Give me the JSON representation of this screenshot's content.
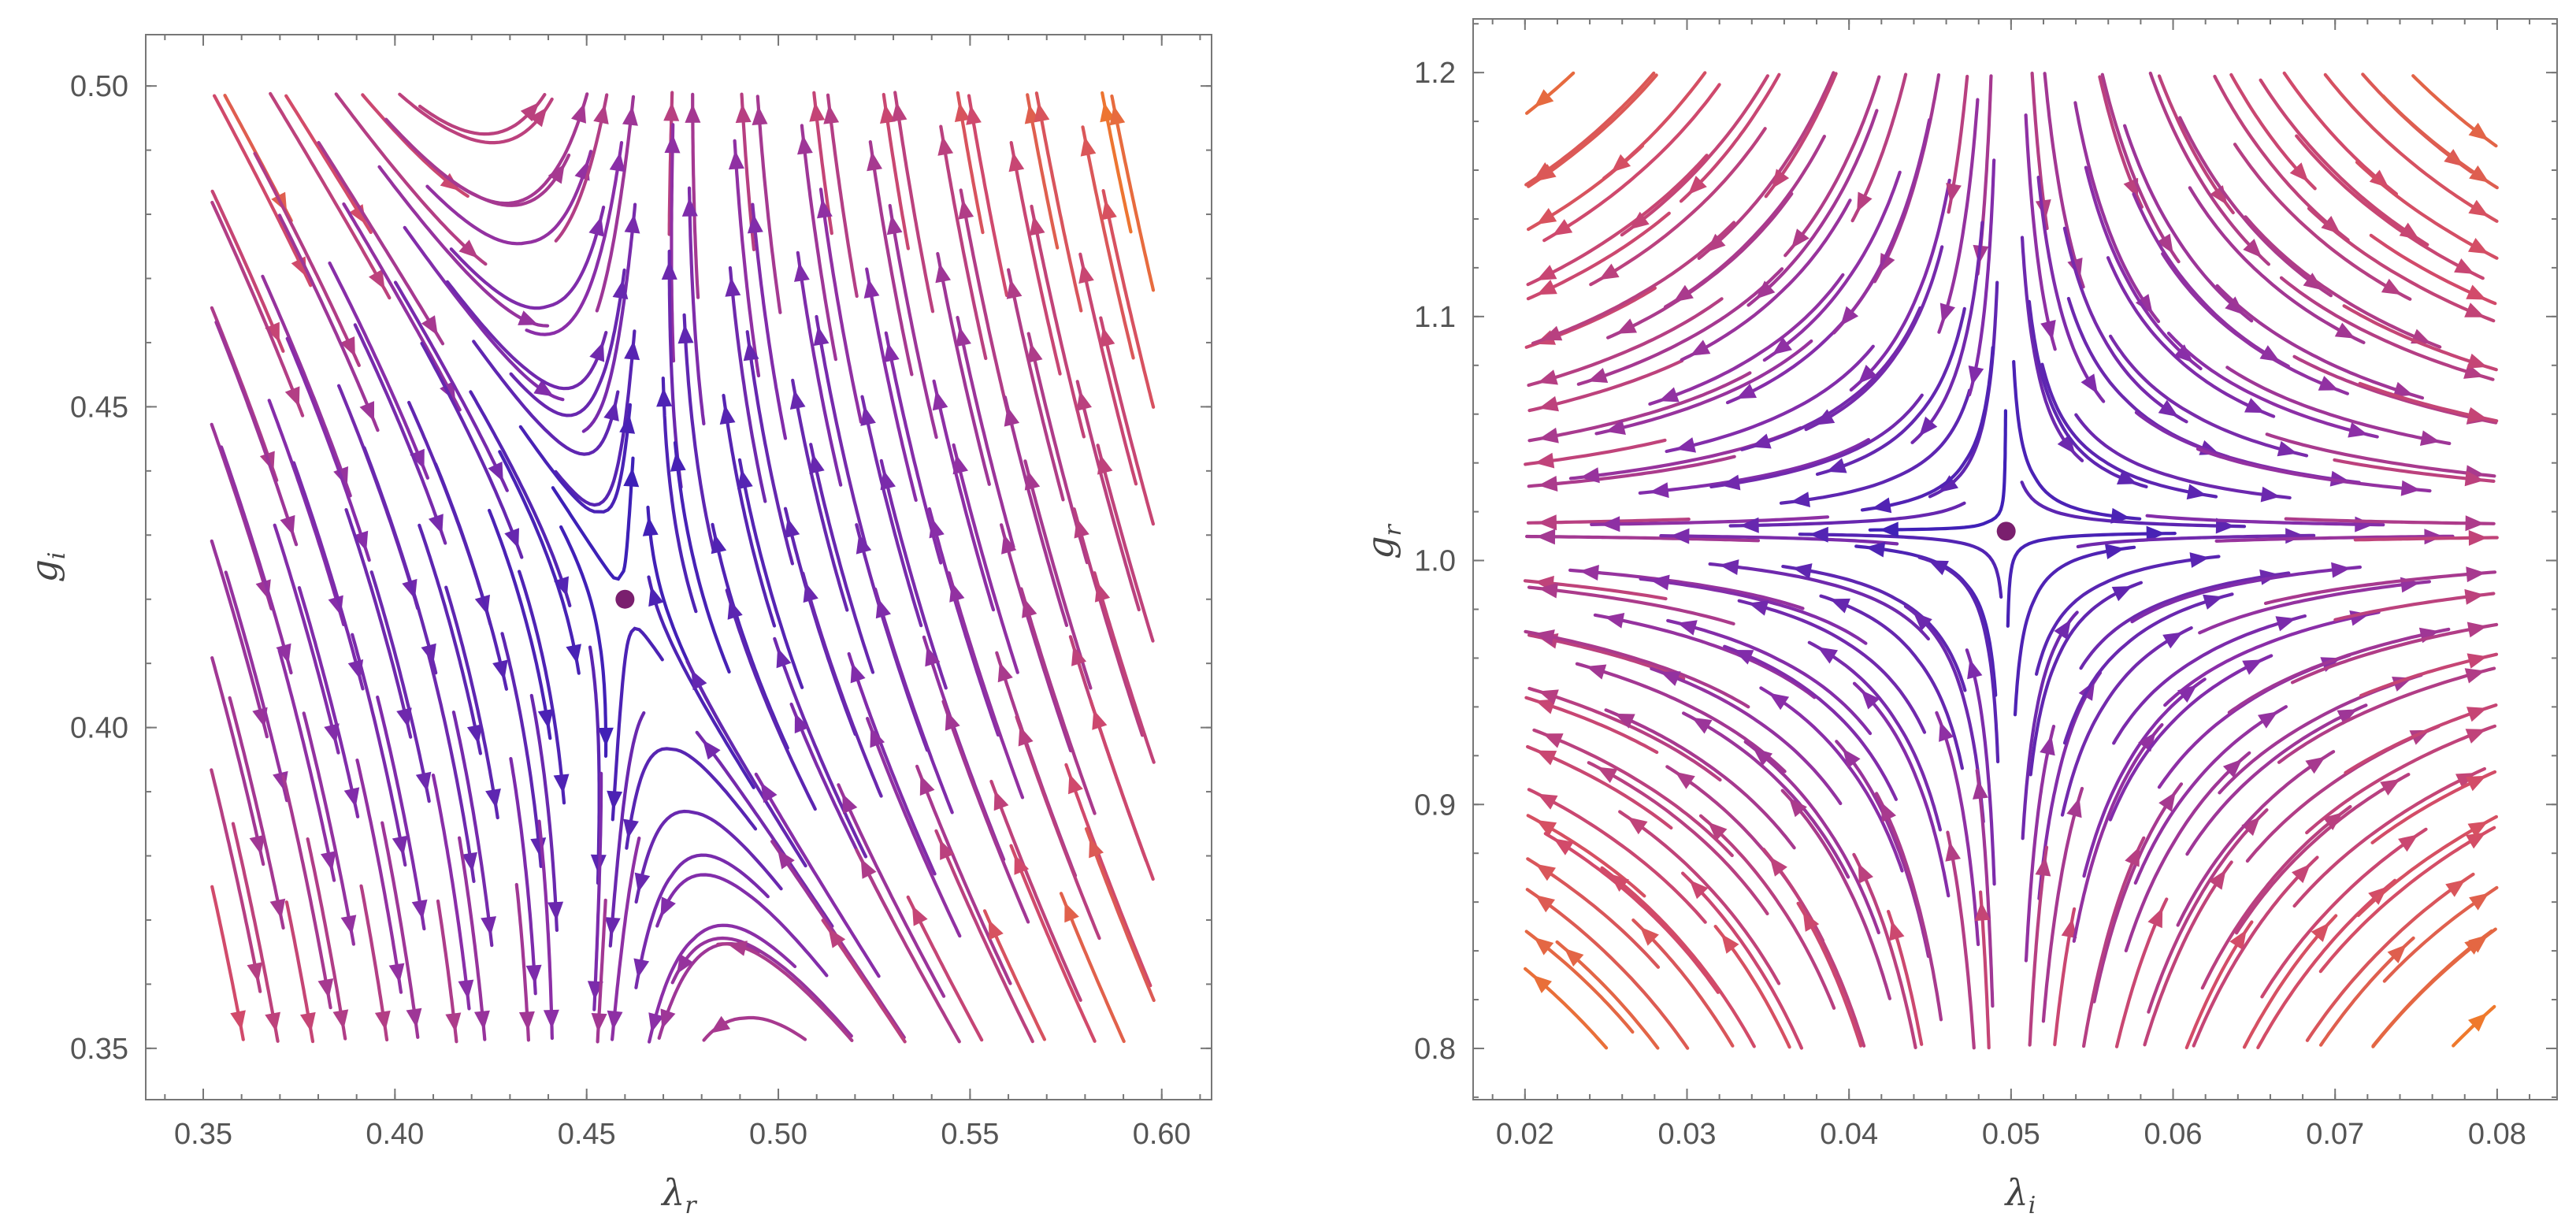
{
  "chart_data": [
    {
      "type": "stream",
      "xlabel": {
        "base": "λ",
        "sub": "r"
      },
      "ylabel": {
        "base": "g",
        "sub": "i"
      },
      "xlim": [
        0.335,
        0.613
      ],
      "ylim": [
        0.342,
        0.508
      ],
      "xticks": [
        0.35,
        0.4,
        0.45,
        0.5,
        0.55,
        0.6
      ],
      "xtick_labels": [
        "0.35",
        "0.40",
        "0.45",
        "0.50",
        "0.55",
        "0.60"
      ],
      "yticks": [
        0.35,
        0.4,
        0.45,
        0.5
      ],
      "ytick_labels": [
        "0.35",
        "0.40",
        "0.45",
        "0.50"
      ],
      "fixed_point": {
        "x": 0.46,
        "y": 0.42
      },
      "field": {
        "type": "saddle-left",
        "stable_dir": [
          0.1,
          1.0
        ],
        "unstable_dir": [
          1.0,
          -0.92
        ],
        "a": 1.0,
        "b": 1.0,
        "kmax": 4.2
      },
      "stream_region": {
        "x": [
          0.352,
          0.598
        ],
        "y": [
          0.351,
          0.499
        ]
      },
      "grid": false
    },
    {
      "type": "stream",
      "xlabel": {
        "base": "λ",
        "sub": "i"
      },
      "ylabel": {
        "base": "g",
        "sub": "r"
      },
      "xlim": [
        0.0168,
        0.0837
      ],
      "ylim": [
        0.779,
        1.222
      ],
      "xticks": [
        0.02,
        0.03,
        0.04,
        0.05,
        0.06,
        0.07,
        0.08
      ],
      "xtick_labels": [
        "0.02",
        "0.03",
        "0.04",
        "0.05",
        "0.06",
        "0.07",
        "0.08"
      ],
      "yticks": [
        0.8,
        0.9,
        1.0,
        1.1,
        1.2
      ],
      "ytick_labels": [
        "0.8",
        "0.9",
        "1.0",
        "1.1",
        "1.2"
      ],
      "fixed_point": {
        "x": 0.0497,
        "y": 1.012
      },
      "field": {
        "type": "saddle-center",
        "stable_dir": [
          1.0,
          0.0
        ],
        "unstable_dir": [
          0.0,
          1.0
        ],
        "a": 1.0,
        "b": 0.9,
        "kmax": 3.0
      },
      "stream_region": {
        "x": [
          0.02,
          0.08
        ],
        "y": [
          0.8,
          1.2
        ]
      },
      "grid": false
    }
  ],
  "colors": {
    "background": "#ffffff",
    "frame": "#777777",
    "tick_label": "#555555",
    "fixed_point": "#7a1f6e",
    "stream_low": "#3a1fb8",
    "stream_mid": "#8a2ea8",
    "stream_high_1": "#d24a6a",
    "stream_high_2": "#f07a2a",
    "stream_high_3": "#f5b21a"
  }
}
